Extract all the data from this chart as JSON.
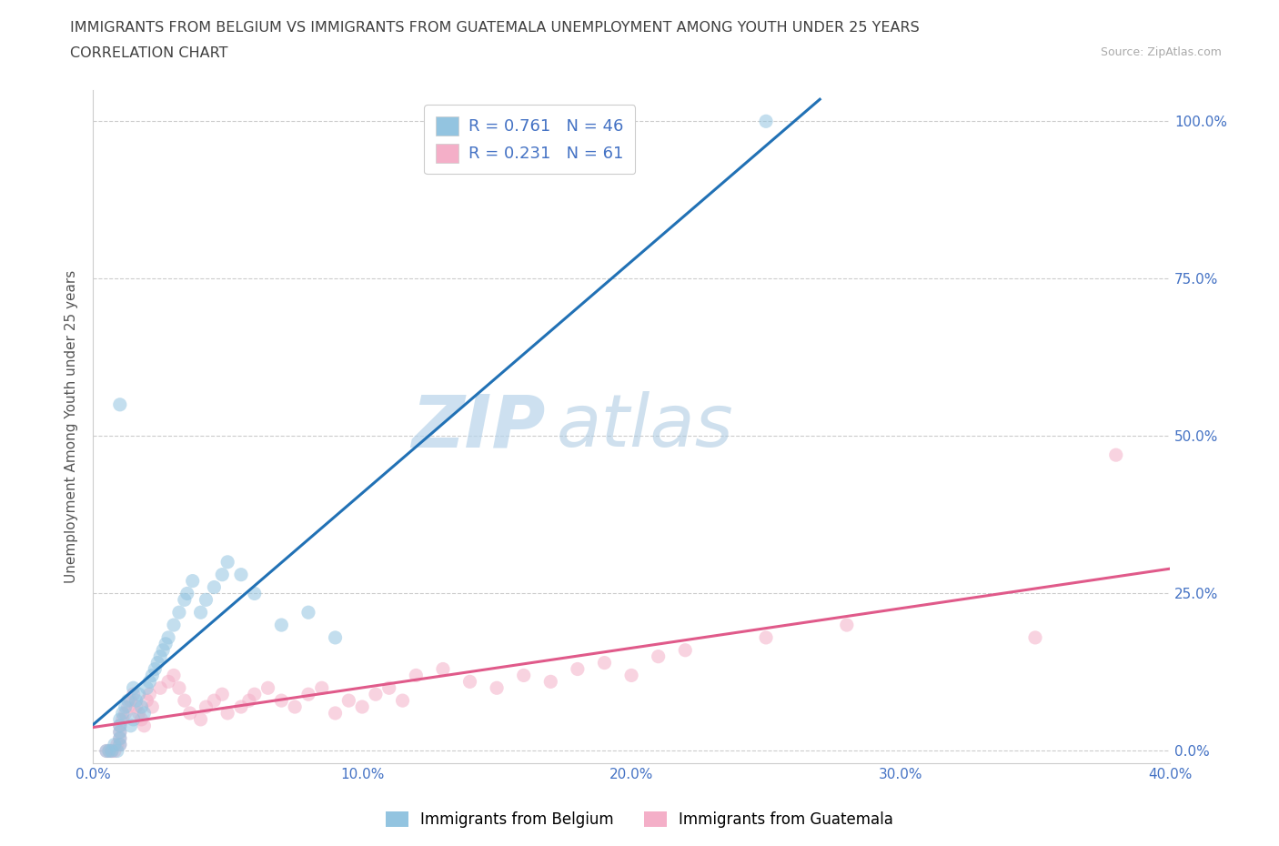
{
  "title_line1": "IMMIGRANTS FROM BELGIUM VS IMMIGRANTS FROM GUATEMALA UNEMPLOYMENT AMONG YOUTH UNDER 25 YEARS",
  "title_line2": "CORRELATION CHART",
  "source_text": "Source: ZipAtlas.com",
  "ylabel": "Unemployment Among Youth under 25 years",
  "watermark_zip": "ZIP",
  "watermark_atlas": "atlas",
  "legend_r1": "R = 0.761",
  "legend_n1": "N = 46",
  "legend_r2": "R = 0.231",
  "legend_n2": "N = 61",
  "color_belgium": "#93c4e0",
  "color_guatemala": "#f4afc8",
  "color_line_belgium": "#2171b5",
  "color_line_guatemala": "#e05a8a",
  "xlim": [
    0.0,
    0.4
  ],
  "ylim": [
    -0.02,
    1.05
  ],
  "xtick_labels": [
    "0.0%",
    "10.0%",
    "20.0%",
    "30.0%",
    "40.0%"
  ],
  "xtick_values": [
    0.0,
    0.1,
    0.2,
    0.3,
    0.4
  ],
  "ytick_labels": [
    "0.0%",
    "25.0%",
    "50.0%",
    "75.0%",
    "100.0%"
  ],
  "ytick_values": [
    0.0,
    0.25,
    0.5,
    0.75,
    1.0
  ],
  "belgium_x": [
    0.005,
    0.006,
    0.007,
    0.008,
    0.009,
    0.01,
    0.01,
    0.01,
    0.01,
    0.01,
    0.011,
    0.012,
    0.013,
    0.014,
    0.015,
    0.015,
    0.016,
    0.017,
    0.018,
    0.019,
    0.02,
    0.021,
    0.022,
    0.023,
    0.024,
    0.025,
    0.026,
    0.027,
    0.028,
    0.03,
    0.032,
    0.034,
    0.035,
    0.037,
    0.04,
    0.042,
    0.045,
    0.048,
    0.05,
    0.055,
    0.06,
    0.07,
    0.08,
    0.09,
    0.01,
    0.25
  ],
  "belgium_y": [
    0.0,
    0.0,
    0.0,
    0.01,
    0.0,
    0.01,
    0.02,
    0.03,
    0.04,
    0.05,
    0.06,
    0.07,
    0.08,
    0.04,
    0.05,
    0.1,
    0.08,
    0.09,
    0.07,
    0.06,
    0.1,
    0.11,
    0.12,
    0.13,
    0.14,
    0.15,
    0.16,
    0.17,
    0.18,
    0.2,
    0.22,
    0.24,
    0.25,
    0.27,
    0.22,
    0.24,
    0.26,
    0.28,
    0.3,
    0.28,
    0.25,
    0.2,
    0.22,
    0.18,
    0.55,
    1.0
  ],
  "guatemala_x": [
    0.005,
    0.006,
    0.007,
    0.008,
    0.009,
    0.01,
    0.01,
    0.01,
    0.01,
    0.011,
    0.012,
    0.013,
    0.014,
    0.015,
    0.016,
    0.017,
    0.018,
    0.019,
    0.02,
    0.021,
    0.022,
    0.025,
    0.028,
    0.03,
    0.032,
    0.034,
    0.036,
    0.04,
    0.042,
    0.045,
    0.048,
    0.05,
    0.055,
    0.058,
    0.06,
    0.065,
    0.07,
    0.075,
    0.08,
    0.085,
    0.09,
    0.095,
    0.1,
    0.105,
    0.11,
    0.115,
    0.12,
    0.13,
    0.14,
    0.15,
    0.16,
    0.17,
    0.18,
    0.19,
    0.2,
    0.21,
    0.22,
    0.25,
    0.28,
    0.35,
    0.38
  ],
  "guatemala_y": [
    0.0,
    0.0,
    0.0,
    0.0,
    0.01,
    0.01,
    0.02,
    0.03,
    0.04,
    0.05,
    0.06,
    0.07,
    0.08,
    0.09,
    0.07,
    0.06,
    0.05,
    0.04,
    0.08,
    0.09,
    0.07,
    0.1,
    0.11,
    0.12,
    0.1,
    0.08,
    0.06,
    0.05,
    0.07,
    0.08,
    0.09,
    0.06,
    0.07,
    0.08,
    0.09,
    0.1,
    0.08,
    0.07,
    0.09,
    0.1,
    0.06,
    0.08,
    0.07,
    0.09,
    0.1,
    0.08,
    0.12,
    0.13,
    0.11,
    0.1,
    0.12,
    0.11,
    0.13,
    0.14,
    0.12,
    0.15,
    0.16,
    0.18,
    0.2,
    0.18,
    0.47
  ],
  "background_color": "#ffffff",
  "grid_color": "#cccccc",
  "title_color": "#404040",
  "axis_color": "#555555",
  "tick_color": "#4472c4",
  "legend_label1": "Immigrants from Belgium",
  "legend_label2": "Immigrants from Guatemala",
  "marker_size": 120,
  "marker_alpha": 0.55,
  "line_width": 2.2
}
